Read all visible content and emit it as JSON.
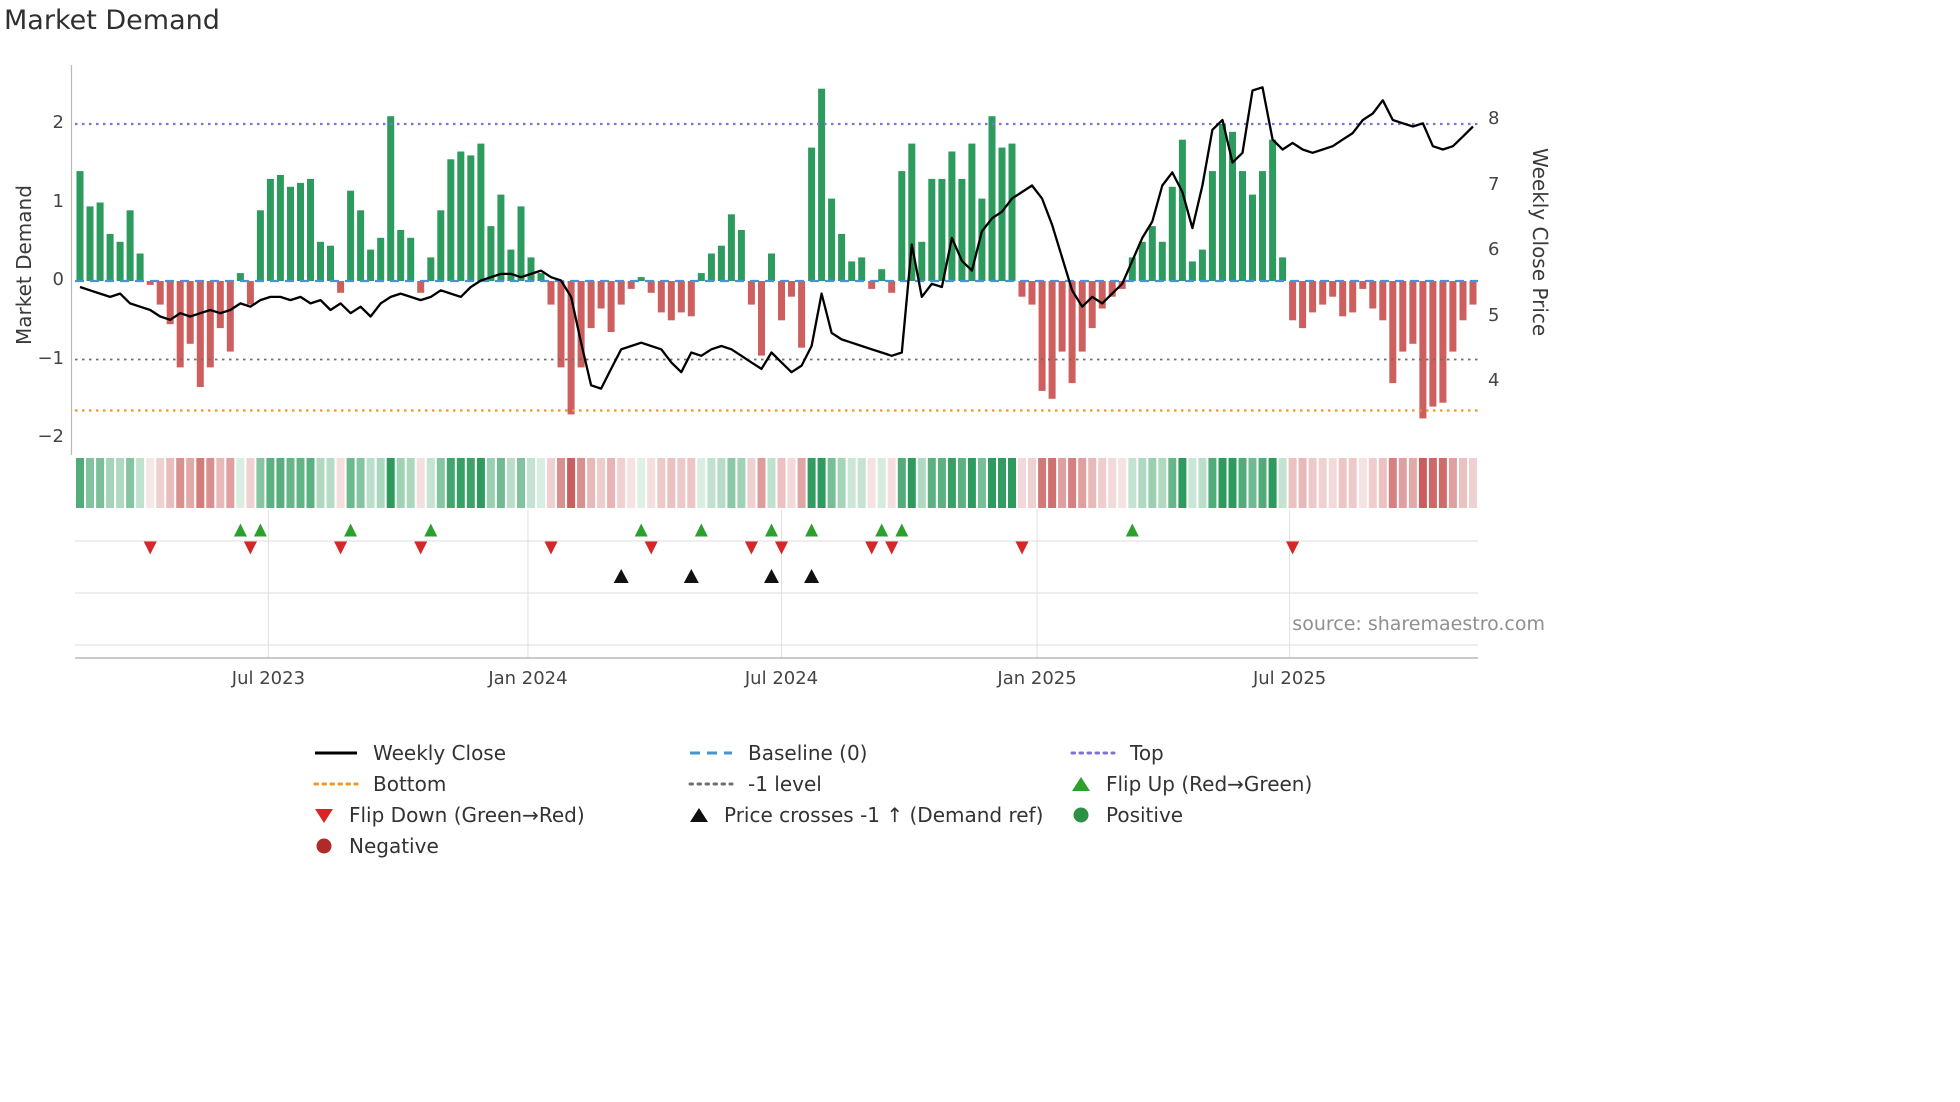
{
  "title": "Market Demand",
  "source": "source: sharemaestro.com",
  "axes": {
    "left_label": "Market Demand",
    "right_label": "Weekly Close Price",
    "left_ticks": [
      {
        "label": "2",
        "value": 2
      },
      {
        "label": "1",
        "value": 1
      },
      {
        "label": "0",
        "value": 0
      },
      {
        "label": "−1",
        "value": -1
      },
      {
        "label": "−2",
        "value": -2
      }
    ],
    "right_ticks": [
      {
        "label": "8",
        "value": 8
      },
      {
        "label": "7",
        "value": 7
      },
      {
        "label": "6",
        "value": 6
      },
      {
        "label": "5",
        "value": 5
      },
      {
        "label": "4",
        "value": 4
      }
    ],
    "x_ticks": [
      {
        "label": "Jul 2023",
        "week": 18.8
      },
      {
        "label": "Jan 2024",
        "week": 44.7
      },
      {
        "label": "Jul 2024",
        "week": 70.0
      },
      {
        "label": "Jan 2025",
        "week": 95.5
      },
      {
        "label": "Jul 2025",
        "week": 120.7
      }
    ]
  },
  "colors": {
    "positive_bar": "#2e9b5e",
    "negative_bar": "#cd5f5f",
    "price_line": "#000000",
    "top_line": "#7e72d8",
    "baseline": "#4a93cf",
    "minus1_line": "#6e6e6e",
    "bottom_line": "#f0991e",
    "flip_up": "#2ca02c",
    "flip_down": "#d62728",
    "price_cross": "#111111",
    "positive_dot": "#2c9144",
    "negative_dot": "#b02a2a",
    "grid": "#e0e0e0",
    "spine": "#b8b8b8"
  },
  "chart_data": {
    "type": "bar",
    "title": "Market Demand",
    "x_unit": "week",
    "x_tick_labels": [
      "Jul 2023",
      "Jan 2024",
      "Jul 2024",
      "Jan 2025",
      "Jul 2025"
    ],
    "ylabel_left": "Market Demand",
    "ylabel_right": "Weekly Close Price",
    "ylim_left": [
      -2.2,
      2.75
    ],
    "ylim_right": [
      2.9,
      8.85
    ],
    "grid": "off",
    "legend_position": "bottom",
    "series": [
      {
        "name": "Market Demand",
        "type": "bar",
        "axis": "left",
        "values": [
          1.4,
          0.95,
          1.0,
          0.6,
          0.5,
          0.9,
          0.35,
          -0.05,
          -0.3,
          -0.55,
          -1.1,
          -0.8,
          -1.35,
          -1.1,
          -0.6,
          -0.9,
          0.1,
          -0.3,
          0.9,
          1.3,
          1.35,
          1.2,
          1.25,
          1.3,
          0.5,
          0.45,
          -0.15,
          1.15,
          0.9,
          0.4,
          0.55,
          2.1,
          0.65,
          0.55,
          -0.15,
          0.3,
          0.9,
          1.55,
          1.65,
          1.6,
          1.75,
          0.7,
          1.1,
          0.4,
          0.95,
          0.3,
          0.1,
          -0.3,
          -1.1,
          -1.7,
          -1.1,
          -0.6,
          -0.35,
          -0.65,
          -0.3,
          -0.1,
          0.05,
          -0.15,
          -0.4,
          -0.5,
          -0.4,
          -0.45,
          0.1,
          0.35,
          0.45,
          0.85,
          0.65,
          -0.3,
          -0.95,
          0.35,
          -0.5,
          -0.2,
          -0.85,
          1.7,
          2.45,
          1.05,
          0.6,
          0.25,
          0.3,
          -0.1,
          0.15,
          -0.15,
          1.4,
          1.75,
          0.5,
          1.3,
          1.3,
          1.65,
          1.3,
          1.75,
          1.05,
          2.1,
          1.7,
          1.75,
          -0.2,
          -0.3,
          -1.4,
          -1.5,
          -0.9,
          -1.3,
          -0.9,
          -0.6,
          -0.35,
          -0.2,
          -0.1,
          0.3,
          0.5,
          0.7,
          0.5,
          1.2,
          1.8,
          0.25,
          0.4,
          1.4,
          2.0,
          1.9,
          1.4,
          1.1,
          1.4,
          1.8,
          0.3,
          -0.5,
          -0.6,
          -0.4,
          -0.3,
          -0.2,
          -0.45,
          -0.4,
          -0.1,
          -0.35,
          -0.5,
          -1.3,
          -0.9,
          -0.8,
          -1.75,
          -1.6,
          -1.55,
          -0.9,
          -0.5,
          -0.3
        ]
      },
      {
        "name": "Weekly Close",
        "type": "line",
        "axis": "right",
        "values": [
          5.45,
          5.4,
          5.35,
          5.3,
          5.35,
          5.2,
          5.15,
          5.1,
          5.0,
          4.95,
          5.05,
          5.0,
          5.05,
          5.1,
          5.05,
          5.1,
          5.2,
          5.15,
          5.25,
          5.3,
          5.3,
          5.25,
          5.3,
          5.2,
          5.25,
          5.1,
          5.2,
          5.05,
          5.15,
          5.0,
          5.2,
          5.3,
          5.35,
          5.3,
          5.25,
          5.3,
          5.4,
          5.35,
          5.3,
          5.45,
          5.55,
          5.6,
          5.65,
          5.65,
          5.6,
          5.65,
          5.7,
          5.6,
          5.55,
          5.3,
          4.6,
          3.95,
          3.9,
          4.2,
          4.5,
          4.55,
          4.6,
          4.55,
          4.5,
          4.3,
          4.15,
          4.45,
          4.4,
          4.5,
          4.55,
          4.5,
          4.4,
          4.3,
          4.2,
          4.45,
          4.3,
          4.15,
          4.25,
          4.55,
          5.35,
          4.75,
          4.65,
          4.6,
          4.55,
          4.5,
          4.45,
          4.4,
          4.45,
          6.1,
          5.3,
          5.5,
          5.45,
          6.2,
          5.85,
          5.7,
          6.3,
          6.5,
          6.6,
          6.8,
          6.9,
          7.0,
          6.8,
          6.4,
          5.9,
          5.4,
          5.15,
          5.3,
          5.2,
          5.35,
          5.5,
          5.85,
          6.2,
          6.45,
          7.0,
          7.2,
          6.9,
          6.35,
          7.0,
          7.85,
          8.0,
          7.35,
          7.5,
          8.45,
          8.5,
          7.7,
          7.55,
          7.65,
          7.55,
          7.5,
          7.55,
          7.6,
          7.7,
          7.8,
          8.0,
          8.1,
          8.3,
          8.0,
          7.95,
          7.9,
          7.95,
          7.6,
          7.55,
          7.6,
          7.75,
          7.9
        ]
      }
    ],
    "reference_lines": [
      {
        "name": "Top",
        "value": 2,
        "style": "dotted",
        "color": "#7e72d8"
      },
      {
        "name": "Baseline (0)",
        "value": 0,
        "style": "dashed",
        "color": "#4a93cf"
      },
      {
        "name": "-1 level",
        "value": -1,
        "style": "dotted",
        "color": "#6e6e6e"
      },
      {
        "name": "Bottom",
        "value": -1.65,
        "style": "dotted",
        "color": "#f0991e"
      }
    ],
    "markers": {
      "flip_up_weeks": [
        16,
        18,
        27,
        35,
        56,
        62,
        69,
        73,
        80,
        82,
        105
      ],
      "flip_down_weeks": [
        7,
        17,
        26,
        34,
        47,
        57,
        67,
        70,
        79,
        81,
        94,
        121
      ],
      "price_cross_minus1_weeks": [
        54,
        61,
        69,
        73
      ]
    },
    "heatmap": "intensity strip below chart derived from Market Demand bar values (green positive, red negative, darker = larger magnitude)"
  },
  "legend": {
    "columns": [
      {
        "items": [
          {
            "label": "Weekly Close",
            "marker": "line",
            "style": "solid",
            "color": "#000000"
          },
          {
            "label": "Bottom",
            "marker": "line",
            "style": "dotted",
            "color": "#f0991e"
          },
          {
            "label": "Flip Down (Green→Red)",
            "marker": "triangle-down",
            "style": "",
            "color": "#d62728"
          },
          {
            "label": "Negative",
            "marker": "circle",
            "style": "",
            "color": "#b02a2a"
          }
        ]
      },
      {
        "items": [
          {
            "label": "Baseline (0)",
            "marker": "line",
            "style": "dashed",
            "color": "#4a93cf"
          },
          {
            "label": "-1 level",
            "marker": "line",
            "style": "dotted",
            "color": "#6e6e6e"
          },
          {
            "label": "Price crosses -1 ↑ (Demand ref)",
            "marker": "triangle-up",
            "style": "",
            "color": "#111111"
          }
        ]
      },
      {
        "items": [
          {
            "label": "Top",
            "marker": "line",
            "style": "dotted",
            "color": "#7e72d8"
          },
          {
            "label": "Flip Up (Red→Green)",
            "marker": "triangle-up",
            "style": "",
            "color": "#2ca02c"
          },
          {
            "label": "Positive",
            "marker": "circle",
            "style": "",
            "color": "#2c9144"
          }
        ]
      }
    ]
  }
}
